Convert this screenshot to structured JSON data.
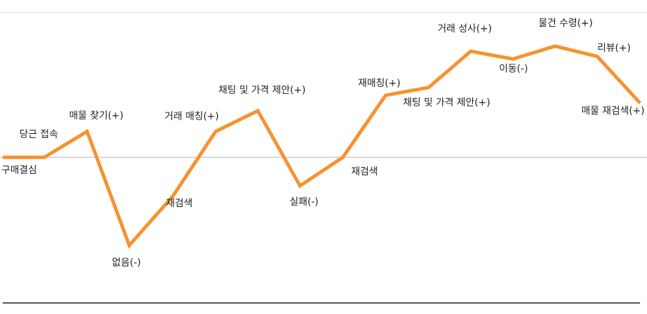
{
  "chart_data": {
    "type": "line",
    "title": "",
    "xlabel": "",
    "ylabel": "",
    "grid": false,
    "ylim": [
      -4,
      4
    ],
    "colors": {
      "line": "#f7922f",
      "baseline": "#d9d9d9",
      "axis": "#555555"
    },
    "series": [
      {
        "points": [
          {
            "x": 0,
            "y": 0,
            "label": "구매결심"
          },
          {
            "x": 1,
            "y": 0,
            "label": "당근 접속"
          },
          {
            "x": 2,
            "y": 1,
            "label": "매물 찾기(+)"
          },
          {
            "x": 3,
            "y": -3.4,
            "label": "없음(-)"
          },
          {
            "x": 4,
            "y": -1.5,
            "label": "재검색"
          },
          {
            "x": 5,
            "y": 1,
            "label": "거래 매칭(+)"
          },
          {
            "x": 6,
            "y": 1.8,
            "label": "채팅 및 가격 제안(+)"
          },
          {
            "x": 7,
            "y": -1.1,
            "label": "실패(-)"
          },
          {
            "x": 8,
            "y": 0,
            "label": "재검색"
          },
          {
            "x": 9,
            "y": 2.4,
            "label": "재매칭(+)"
          },
          {
            "x": 10,
            "y": 2.7,
            "label": "채팅 및 가격 제안(+)"
          },
          {
            "x": 11,
            "y": 4.1,
            "label": "거래 성사(+)"
          },
          {
            "x": 12,
            "y": 3.8,
            "label": "이동(-)"
          },
          {
            "x": 13,
            "y": 4.3,
            "label": "물건 수령(+)"
          },
          {
            "x": 14,
            "y": 3.9,
            "label": "리뷰(+)"
          },
          {
            "x": 15,
            "y": 2.1,
            "label": "매물 재검색(+)"
          }
        ]
      }
    ]
  }
}
